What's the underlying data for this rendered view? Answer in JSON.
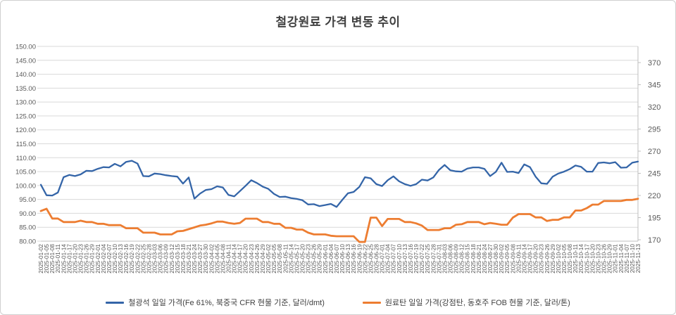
{
  "title": "철강원료 가격 변동 추이",
  "chart_data": {
    "type": "line",
    "title": "철강원료 가격 변동 추이",
    "grid": true,
    "legend_position": "bottom",
    "axes": {
      "left": {
        "ticks": [
          "150.00",
          "145.00",
          "140.00",
          "135.00",
          "130.00",
          "125.00",
          "120.00",
          "115.00",
          "110.00",
          "105.00",
          "100.00",
          "95.00",
          "90.00",
          "85.00",
          "80.00"
        ],
        "min": 80,
        "max": 150
      },
      "right": {
        "ticks": [
          "370",
          "345",
          "320",
          "295",
          "270",
          "245",
          "220",
          "195",
          "170"
        ],
        "min": 170,
        "max": 370
      }
    },
    "x_labels": [
      "2025-01-02",
      "2025-01-05",
      "2025-01-08",
      "2025-01-11",
      "2025-01-14",
      "2025-01-17",
      "2025-01-20",
      "2025-01-23",
      "2025-01-26",
      "2025-01-29",
      "2025-02-01",
      "2025-02-04",
      "2025-02-07",
      "2025-02-10",
      "2025-02-13",
      "2025-02-16",
      "2025-02-19",
      "2025-02-22",
      "2025-02-25",
      "2025-02-28",
      "2025-03-03",
      "2025-03-06",
      "2025-03-09",
      "2025-03-12",
      "2025-03-15",
      "2025-03-18",
      "2025-03-21",
      "2025-03-24",
      "2025-03-27",
      "2025-03-30",
      "2025-04-02",
      "2025-04-05",
      "2025-04-08",
      "2025-04-11",
      "2025-04-14",
      "2025-04-17",
      "2025-04-20",
      "2025-04-23",
      "2025-04-26",
      "2025-04-29",
      "2025-05-02",
      "2025-05-05",
      "2025-05-08",
      "2025-05-11",
      "2025-05-14",
      "2025-05-17",
      "2025-05-20",
      "2025-05-23",
      "2025-05-26",
      "2025-05-29",
      "2025-06-01",
      "2025-06-04",
      "2025-06-07",
      "2025-06-10",
      "2025-06-13",
      "2025-06-16",
      "2025-06-19",
      "2025-06-22",
      "2025-06-25",
      "2025-06-28",
      "2025-07-01",
      "2025-07-04",
      "2025-07-07",
      "2025-07-10",
      "2025-07-13",
      "2025-07-16",
      "2025-07-19",
      "2025-07-22",
      "2025-07-25",
      "2025-07-28",
      "2025-07-31",
      "2025-08-03",
      "2025-08-06",
      "2025-08-09",
      "2025-08-12",
      "2025-08-15",
      "2025-08-18",
      "2025-08-21",
      "2025-08-24",
      "2025-08-27",
      "2025-08-30",
      "2025-09-02",
      "2025-09-05",
      "2025-09-08",
      "2025-09-11",
      "2025-09-14",
      "2025-09-17",
      "2025-09-20",
      "2025-09-23",
      "2025-09-26",
      "2025-09-29",
      "2025-10-02",
      "2025-10-05",
      "2025-10-08",
      "2025-10-11",
      "2025-10-14",
      "2025-10-17",
      "2025-10-20",
      "2025-10-23",
      "2025-10-26",
      "2025-10-29",
      "2025-11-01",
      "2025-11-04",
      "2025-11-07",
      "2025-11-10",
      "2025-11-13"
    ],
    "series": [
      {
        "name": "철광석 일일 가격(Fe 61%, 북중국 CFR 현물 기준, 달러/dmt)",
        "axis": "left",
        "color": "#3465A8",
        "values": [
          100.3,
          96.5,
          96.4,
          97.5,
          103.0,
          103.8,
          103.4,
          104.0,
          105.3,
          105.2,
          106.0,
          106.6,
          106.5,
          107.8,
          106.9,
          108.5,
          108.9,
          107.9,
          103.4,
          103.3,
          104.3,
          104.1,
          103.7,
          103.4,
          103.2,
          100.7,
          102.9,
          95.3,
          97.1,
          98.4,
          98.7,
          99.7,
          99.3,
          96.6,
          96.1,
          98.0,
          99.9,
          101.9,
          100.9,
          99.6,
          98.8,
          97.0,
          95.9,
          96.0,
          95.5,
          95.2,
          94.7,
          93.2,
          93.3,
          92.6,
          93.0,
          93.4,
          92.3,
          94.8,
          97.2,
          97.7,
          99.5,
          103.0,
          102.6,
          100.5,
          99.8,
          101.9,
          103.3,
          101.5,
          100.5,
          99.9,
          100.5,
          102.1,
          101.8,
          102.9,
          105.6,
          107.4,
          105.5,
          105.1,
          105.0,
          106.1,
          106.5,
          106.5,
          106.0,
          103.4,
          104.9,
          108.2,
          104.9,
          105.0,
          104.5,
          107.6,
          106.6,
          103.2,
          100.8,
          100.6,
          103.2,
          104.3,
          105.0,
          105.9,
          107.2,
          106.7,
          105.0,
          105.0,
          108.1,
          108.3,
          108.0,
          108.4,
          106.4,
          106.5,
          108.2,
          108.6
        ]
      },
      {
        "name": "원료탄 일일 가격(강점탄, 동호주 FOB 현물 기준, 달러/톤)",
        "axis": "right",
        "color": "#ED7D31",
        "values": [
          202.5,
          205.0,
          194.0,
          194.0,
          190.0,
          190.0,
          190.0,
          191.5,
          190.0,
          190.0,
          188.0,
          188.0,
          186.5,
          186.5,
          186.5,
          183.0,
          183.0,
          183.0,
          178.0,
          178.0,
          178.0,
          176.0,
          176.0,
          176.0,
          179.5,
          180.0,
          182.0,
          184.0,
          186.0,
          187.0,
          188.5,
          190.5,
          190.5,
          189.0,
          188.0,
          189.0,
          193.8,
          193.8,
          193.8,
          190.0,
          190.0,
          188.0,
          188.0,
          183.5,
          183.5,
          181.5,
          181.5,
          178.0,
          176.0,
          176.0,
          176.0,
          174.5,
          174.0,
          174.0,
          174.0,
          174.0,
          167.5,
          167.5,
          195.0,
          195.0,
          185.5,
          193.5,
          193.5,
          193.5,
          190.0,
          190.0,
          188.5,
          186.0,
          181.0,
          181.0,
          181.0,
          183.0,
          183.0,
          187.0,
          187.5,
          190.0,
          190.0,
          190.0,
          187.5,
          189.0,
          188.0,
          187.0,
          187.0,
          195.0,
          199.0,
          199.0,
          199.0,
          195.2,
          195.2,
          191.2,
          192.5,
          192.5,
          195.2,
          195.2,
          203.0,
          203.0,
          205.7,
          209.7,
          209.7,
          213.7,
          213.7,
          213.7,
          213.7,
          215.0,
          215.0,
          216.3
        ]
      }
    ]
  }
}
